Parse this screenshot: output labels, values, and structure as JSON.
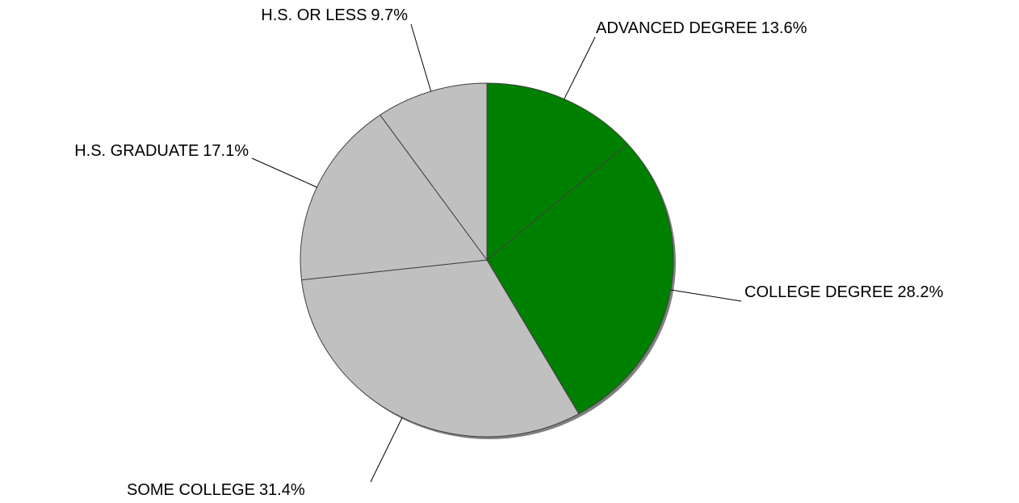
{
  "chart_data": {
    "type": "pie",
    "categories": [
      "ADVANCED DEGREE",
      "COLLEGE DEGREE",
      "SOME COLLEGE",
      "H.S. GRADUATE",
      "H.S. OR LESS"
    ],
    "values": [
      13.6,
      28.2,
      31.4,
      17.1,
      9.7
    ],
    "value_labels": [
      "13.6%",
      "28.2%",
      "31.4%",
      "17.1%",
      "9.7%"
    ],
    "colors": [
      "#008000",
      "#008000",
      "#c0c0c0",
      "#c0c0c0",
      "#c0c0c0"
    ]
  }
}
